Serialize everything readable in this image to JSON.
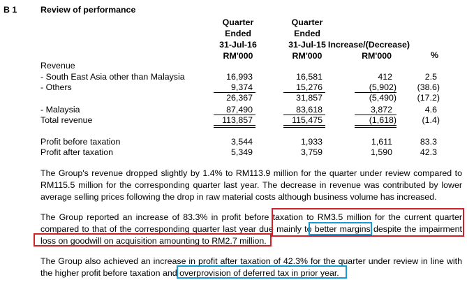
{
  "section": {
    "number": "B 1",
    "title": "Review of performance"
  },
  "columns": {
    "q16": [
      "Quarter",
      "Ended",
      "31-Jul-16",
      "RM'000"
    ],
    "q15": [
      "Quarter",
      "Ended",
      "31-Jul-15",
      "RM'000"
    ],
    "inc": [
      "Increase/(Decrease)",
      "RM'000"
    ],
    "pct": [
      "%"
    ]
  },
  "rows": {
    "revenue_header": "Revenue",
    "sea": {
      "label": "- South East Asia other than Malaysia",
      "q16": "16,993",
      "q15": "16,581",
      "inc": "412",
      "pct": "2.5"
    },
    "others": {
      "label": "- Others",
      "q16": "9,374",
      "q15": "15,276",
      "inc": "(5,902)",
      "pct": "(38.6)"
    },
    "subtotal": {
      "label": "",
      "q16": "26,367",
      "q15": "31,857",
      "inc": "(5,490)",
      "pct": "(17.2)"
    },
    "malaysia": {
      "label": "- Malaysia",
      "q16": "87,490",
      "q15": "83,618",
      "inc": "3,872",
      "pct": "4.6"
    },
    "total": {
      "label": "Total revenue",
      "q16": "113,857",
      "q15": "115,475",
      "inc": "(1,618)",
      "pct": "(1.4)"
    },
    "pbt": {
      "label": "Profit before taxation",
      "q16": "3,544",
      "q15": "1,933",
      "inc": "1,611",
      "pct": "83.3"
    },
    "pat": {
      "label": "Profit after taxation",
      "q16": "5,349",
      "q15": "3,759",
      "inc": "1,590",
      "pct": "42.3"
    }
  },
  "paragraphs": {
    "p1": "The Group's revenue dropped slightly by 1.4% to RM113.9 million for the quarter under review compared to RM115.5 million for the corresponding quarter last year. The decrease in revenue was contributed by lower average selling prices following the drop in raw material costs although business volume has increased.",
    "p2": {
      "a": "The Group reported an increase of 83.3% in profit before taxation to RM3.5 million for the current quarter compared to that of the corresponding quarter last year due mainly to ",
      "b": "better margins",
      "c": " despite the impairment loss on goodwill on acquisition amounting to RM2.7 million."
    },
    "p3": {
      "a": "The Group also achieved an increase in profit after taxation of 42.3% for the quarter under review in line with the higher profit before taxation and ",
      "b": "overprovision of deferred tax in prior year."
    }
  },
  "highlight_colors": {
    "red": "#d0202a",
    "blue": "#1a9ad6"
  }
}
